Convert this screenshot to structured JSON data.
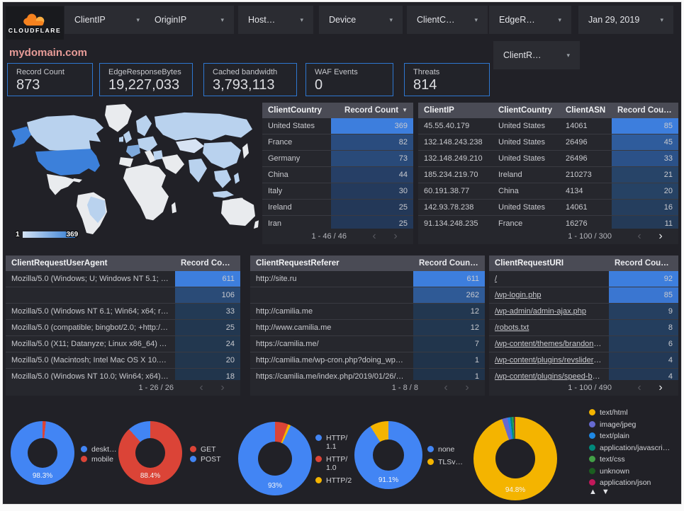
{
  "brand": {
    "logo_text": "CLOUDFLARE"
  },
  "icons": {
    "dropdown_caret": "▾",
    "page_prev": "‹",
    "page_next": "›",
    "legend_up": "▲",
    "legend_down": "▼"
  },
  "filters": [
    {
      "label": "ClientIP"
    },
    {
      "label": "OriginIP"
    },
    {
      "label": "Host…"
    },
    {
      "label": "Device"
    },
    {
      "label": "ClientC…"
    },
    {
      "label": "EdgeR…"
    }
  ],
  "date_filter": {
    "label": "Jan 29, 2019"
  },
  "extra_filter": {
    "label": "ClientR…"
  },
  "page_title": "mydomain.com",
  "scorecards": [
    {
      "label": "Record Count",
      "value": "873"
    },
    {
      "label": "EdgeResponseBytes",
      "value": "19,227,033"
    },
    {
      "label": "Cached bandwidth",
      "value": "3,793,113"
    },
    {
      "label": "WAF Events",
      "value": "0"
    },
    {
      "label": "Threats",
      "value": "814"
    }
  ],
  "map": {
    "legend_min": "1",
    "legend_max": "369",
    "palette": {
      "no_data": "#e9ebee",
      "pale": "#d7e3f3",
      "light": "#b9d2ee",
      "medium": "#7ea9dc",
      "max": "#3c80da",
      "grad_start": "#d5e3f5",
      "grad_end": "#2f7ad1"
    }
  },
  "tables": [
    {
      "id": "country",
      "columns": [
        "ClientCountry",
        "Record Count"
      ],
      "sort_glyph": "▼",
      "rows": [
        [
          "United States",
          "369",
          "#3d7edd"
        ],
        [
          "France",
          "82",
          "#2a4c7e"
        ],
        [
          "Germany",
          "73",
          "#294a79"
        ],
        [
          "China",
          "44",
          "#263f66"
        ],
        [
          "Italy",
          "30",
          "#243a5c"
        ],
        [
          "Ireland",
          "25",
          "#233858"
        ],
        [
          "Iran",
          "25",
          "#233858"
        ]
      ],
      "pagination": {
        "label": "1 - 46 / 46",
        "prev": false,
        "next": false
      }
    },
    {
      "id": "clientip",
      "columns": [
        "ClientIP",
        "ClientCountry",
        "ClientASN",
        "Record Count"
      ],
      "sort_glyph": "–",
      "rows": [
        [
          "45.55.40.179",
          "United States",
          "14061",
          "85",
          "#3d7edd"
        ],
        [
          "132.148.243.238",
          "United States",
          "26496",
          "45",
          "#2f5c9c"
        ],
        [
          "132.148.249.210",
          "United States",
          "26496",
          "33",
          "#2b5188"
        ],
        [
          "185.234.219.70",
          "Ireland",
          "210273",
          "21",
          "#274468"
        ],
        [
          "60.191.38.77",
          "China",
          "4134",
          "20",
          "#264264"
        ],
        [
          "142.93.78.238",
          "United States",
          "14061",
          "16",
          "#253e5e"
        ],
        [
          "91.134.248.235",
          "France",
          "16276",
          "11",
          "#243a57"
        ]
      ],
      "pagination": {
        "label": "1 - 100 / 300",
        "prev": false,
        "next": true
      }
    },
    {
      "id": "useragent",
      "columns": [
        "ClientRequestUserAgent",
        "Record Count"
      ],
      "sort_glyph": "▼",
      "rows": [
        [
          "Mozilla/5.0 (Windows; U; Windows NT 5.1; en-U…",
          "611",
          "#3d7edd"
        ],
        [
          "",
          "106",
          "#2a4b77"
        ],
        [
          "Mozilla/5.0 (Windows NT 6.1; Win64; x64; rv:64.…",
          "33",
          "#233a55"
        ],
        [
          "Mozilla/5.0 (compatible; bingbot/2.0; +http://w…",
          "25",
          "#223750"
        ],
        [
          "Mozilla/5.0 (X11; Datanyze; Linux x86_64) Appl…",
          "24",
          "#22374f"
        ],
        [
          "Mozilla/5.0 (Macintosh; Intel Mac OS X 10.11; r…",
          "20",
          "#22364d"
        ],
        [
          "Mozilla/5.0 (Windows NT 10.0; Win64; x64) App…",
          "18",
          "#21354c"
        ]
      ],
      "pagination": {
        "label": "1 - 26 / 26",
        "prev": false,
        "next": false
      }
    },
    {
      "id": "referer",
      "columns": [
        "ClientRequestReferer",
        "Record Count"
      ],
      "sort_glyph": "▼",
      "rows": [
        [
          "http://site.ru",
          "611",
          "#3d7edd"
        ],
        [
          "",
          "262",
          "#2f5a96"
        ],
        [
          "http://camilia.me",
          "12",
          "#223750"
        ],
        [
          "http://www.camilia.me",
          "12",
          "#223750"
        ],
        [
          "https://camilia.me/",
          "7",
          "#21354c"
        ],
        [
          "http://camilia.me/wp-cron.php?doing_wp_cron…",
          "1",
          "#20334a"
        ],
        [
          "https://camilia.me/index.php/2019/01/26/stor…",
          "1",
          "#20334a"
        ]
      ],
      "pagination": {
        "label": "1 - 8 / 8",
        "prev": false,
        "next": false
      }
    },
    {
      "id": "uri",
      "link_rows": true,
      "columns": [
        "ClientRequestURI",
        "Record Count"
      ],
      "sort_glyph": "–",
      "rows": [
        [
          "/",
          "92",
          "#3d7edd"
        ],
        [
          "/wp-login.php",
          "85",
          "#3a76d1"
        ],
        [
          "/wp-admin/admin-ajax.php",
          "9",
          "#253f60"
        ],
        [
          "/robots.txt",
          "8",
          "#243e5e"
        ],
        [
          "/wp-content/themes/brandon/plu…",
          "6",
          "#243c5a"
        ],
        [
          "/wp-content/plugins/revslider/rs-p…",
          "4",
          "#233956"
        ],
        [
          "/wp-content/plugins/speed-booste…",
          "4",
          "#233956"
        ]
      ],
      "pagination": {
        "label": "1 - 100 / 490",
        "prev": false,
        "next": true
      }
    }
  ],
  "donuts": [
    {
      "name": "device-category",
      "center_label": "98.3%",
      "slices": [
        {
          "label": "mobile",
          "color": "#db4437",
          "pct": 1.7
        },
        {
          "label": "desktop",
          "color": "#4285f4",
          "pct": 98.3
        }
      ],
      "legend": [
        {
          "label": "deskt…",
          "color": "#4285f4"
        },
        {
          "label": "mobile",
          "color": "#db4437"
        }
      ]
    },
    {
      "name": "request-method",
      "center_label": "88.4%",
      "slices": [
        {
          "label": "GET",
          "color": "#db4437",
          "pct": 88.4
        },
        {
          "label": "POST",
          "color": "#4285f4",
          "pct": 11.6
        }
      ],
      "legend": [
        {
          "label": "GET",
          "color": "#db4437"
        },
        {
          "label": "POST",
          "color": "#4285f4"
        }
      ]
    },
    {
      "name": "http-protocol",
      "center_label": "93%",
      "slices": [
        {
          "label": "HTTP/1.0",
          "color": "#db4437",
          "pct": 5.8
        },
        {
          "label": "HTTP/2",
          "color": "#f4b400",
          "pct": 1.2
        },
        {
          "label": "HTTP/1.1",
          "color": "#4285f4",
          "pct": 93
        }
      ],
      "legend": [
        {
          "label": "HTTP/\n1.1",
          "color": "#4285f4"
        },
        {
          "label": "HTTP/\n1.0",
          "color": "#db4437"
        },
        {
          "label": "HTTP/2",
          "color": "#f4b400"
        }
      ]
    },
    {
      "name": "tls-version",
      "center_label": "91.1%",
      "slices": [
        {
          "label": "none",
          "color": "#4285f4",
          "pct": 91.1
        },
        {
          "label": "TLSv…",
          "color": "#f4b400",
          "pct": 8.9
        }
      ],
      "legend": [
        {
          "label": "none",
          "color": "#4285f4"
        },
        {
          "label": "TLSv…",
          "color": "#f4b400"
        }
      ]
    },
    {
      "name": "content-type",
      "center_label": "94.8%",
      "sort_controls": true,
      "slices": [
        {
          "label": "text/html",
          "color": "#f4b400",
          "pct": 94.8
        },
        {
          "label": "image/jpeg",
          "color": "#666ad1",
          "pct": 2.2
        },
        {
          "label": "text/plain",
          "color": "#1e88e5",
          "pct": 1.0
        },
        {
          "label": "application/javascri…",
          "color": "#00897b",
          "pct": 0.8
        },
        {
          "label": "text/css",
          "color": "#43a047",
          "pct": 0.5
        },
        {
          "label": "unknown",
          "color": "#1b5e20",
          "pct": 0.4
        },
        {
          "label": "application/json",
          "color": "#c2185b",
          "pct": 0.3
        }
      ],
      "legend": [
        {
          "label": "text/html",
          "color": "#f4b400"
        },
        {
          "label": "image/jpeg",
          "color": "#666ad1"
        },
        {
          "label": "text/plain",
          "color": "#1e88e5"
        },
        {
          "label": "application/javascri…",
          "color": "#00897b"
        },
        {
          "label": "text/css",
          "color": "#43a047"
        },
        {
          "label": "unknown",
          "color": "#1b5e20"
        },
        {
          "label": "application/json",
          "color": "#c2185b"
        }
      ]
    }
  ]
}
